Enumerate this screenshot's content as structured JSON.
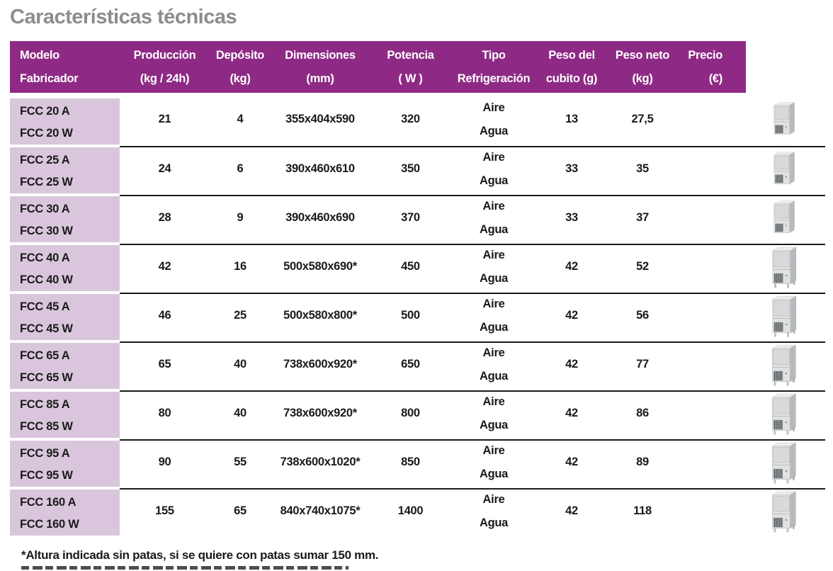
{
  "title": "Características técnicas",
  "footnote": "*Altura indicada sin patas, si se quiere con patas sumar 150 mm.",
  "colors": {
    "header_bg": "#8e2a85",
    "model_cell_bg": "#d9c6dc",
    "title_text": "#8c8c8c",
    "row_line": "#1a1a1a",
    "header_text": "#ffffff"
  },
  "table": {
    "columns": [
      {
        "id": "model",
        "label": "Modelo",
        "unit": "Fabricador"
      },
      {
        "id": "produccion",
        "label": "Producción",
        "unit": "(kg / 24h)"
      },
      {
        "id": "deposito",
        "label": "Depósito",
        "unit": "(kg)"
      },
      {
        "id": "dimensiones",
        "label": "Dimensiones",
        "unit": "(mm)"
      },
      {
        "id": "potencia",
        "label": "Potencia",
        "unit": "( W )"
      },
      {
        "id": "tipo",
        "label": "Tipo",
        "unit": "Refrigeración"
      },
      {
        "id": "peso_cubito",
        "label": "Peso del",
        "unit": "cubito (g)"
      },
      {
        "id": "peso_neto",
        "label": "Peso neto",
        "unit": "(kg)"
      },
      {
        "id": "precio",
        "label": "Precio",
        "unit": "(€)"
      }
    ],
    "rows": [
      {
        "models": [
          "FCC 20 A",
          "FCC 20 W"
        ],
        "produccion": "21",
        "deposito": "4",
        "dimensiones": "355x404x590",
        "potencia": "320",
        "tipo": [
          "Aire",
          "Agua"
        ],
        "peso_cubito": "13",
        "peso_neto": "27,5",
        "precio": "",
        "icon": "ice-machine-small"
      },
      {
        "models": [
          "FCC 25 A",
          "FCC 25 W"
        ],
        "produccion": "24",
        "deposito": "6",
        "dimensiones": "390x460x610",
        "potencia": "350",
        "tipo": [
          "Aire",
          "Agua"
        ],
        "peso_cubito": "33",
        "peso_neto": "35",
        "precio": "",
        "icon": "ice-machine-small"
      },
      {
        "models": [
          "FCC 30 A",
          "FCC 30 W"
        ],
        "produccion": "28",
        "deposito": "9",
        "dimensiones": "390x460x690",
        "potencia": "370",
        "tipo": [
          "Aire",
          "Agua"
        ],
        "peso_cubito": "33",
        "peso_neto": "37",
        "precio": "",
        "icon": "ice-machine-small"
      },
      {
        "models": [
          "FCC 40 A",
          "FCC 40 W"
        ],
        "produccion": "42",
        "deposito": "16",
        "dimensiones": "500x580x690*",
        "potencia": "450",
        "tipo": [
          "Aire",
          "Agua"
        ],
        "peso_cubito": "42",
        "peso_neto": "52",
        "precio": "",
        "icon": "ice-machine-medium"
      },
      {
        "models": [
          "FCC 45 A",
          "FCC 45 W"
        ],
        "produccion": "46",
        "deposito": "25",
        "dimensiones": "500x580x800*",
        "potencia": "500",
        "tipo": [
          "Aire",
          "Agua"
        ],
        "peso_cubito": "42",
        "peso_neto": "56",
        "precio": "",
        "icon": "ice-machine-medium"
      },
      {
        "models": [
          "FCC 65 A",
          "FCC 65 W"
        ],
        "produccion": "65",
        "deposito": "40",
        "dimensiones": "738x600x920*",
        "potencia": "650",
        "tipo": [
          "Aire",
          "Agua"
        ],
        "peso_cubito": "42",
        "peso_neto": "77",
        "precio": "",
        "icon": "ice-machine-large"
      },
      {
        "models": [
          "FCC 85 A",
          "FCC 85 W"
        ],
        "produccion": "80",
        "deposito": "40",
        "dimensiones": "738x600x920*",
        "potencia": "800",
        "tipo": [
          "Aire",
          "Agua"
        ],
        "peso_cubito": "42",
        "peso_neto": "86",
        "precio": "",
        "icon": "ice-machine-large"
      },
      {
        "models": [
          "FCC 95 A",
          "FCC 95 W"
        ],
        "produccion": "90",
        "deposito": "55",
        "dimensiones": "738x600x1020*",
        "potencia": "850",
        "tipo": [
          "Aire",
          "Agua"
        ],
        "peso_cubito": "42",
        "peso_neto": "89",
        "precio": "",
        "icon": "ice-machine-large"
      },
      {
        "models": [
          "FCC 160 A",
          "FCC 160 W"
        ],
        "produccion": "155",
        "deposito": "65",
        "dimensiones": "840x740x1075*",
        "potencia": "1400",
        "tipo": [
          "Aire",
          "Agua"
        ],
        "peso_cubito": "42",
        "peso_neto": "118",
        "precio": "",
        "icon": "ice-machine-xl"
      }
    ]
  }
}
